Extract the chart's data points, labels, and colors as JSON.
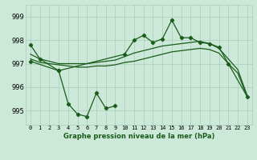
{
  "title": "Graphe pression niveau de la mer (hPa)",
  "background_color": "#cce8d8",
  "grid_color": "#aaccbb",
  "line_color": "#1a5c1a",
  "ylim": [
    994.4,
    999.5
  ],
  "yticks": [
    995,
    996,
    997,
    998,
    999
  ],
  "x_labels": [
    "0",
    "1",
    "2",
    "3",
    "4",
    "5",
    "6",
    "7",
    "8",
    "9",
    "10",
    "11",
    "12",
    "13",
    "14",
    "15",
    "16",
    "17",
    "18",
    "19",
    "20",
    "21",
    "22",
    "23"
  ],
  "s1_x": [
    0,
    1,
    3,
    10,
    11,
    12,
    13,
    14,
    15,
    16,
    17,
    18,
    19,
    20,
    21,
    23
  ],
  "s1_y": [
    997.8,
    997.2,
    996.7,
    997.4,
    998.0,
    998.2,
    997.9,
    998.05,
    998.85,
    998.1,
    998.1,
    997.9,
    997.85,
    997.7,
    997.0,
    995.6
  ],
  "s2_x": [
    0,
    1,
    2,
    3,
    4,
    5,
    6,
    7,
    8,
    9,
    10,
    11,
    12,
    13,
    14,
    15,
    16,
    17,
    18,
    19,
    20,
    21,
    22,
    23
  ],
  "s2_y": [
    997.4,
    997.2,
    997.1,
    997.0,
    997.0,
    997.0,
    997.0,
    997.05,
    997.1,
    997.15,
    997.3,
    997.45,
    997.55,
    997.65,
    997.75,
    997.8,
    997.85,
    997.9,
    997.95,
    997.85,
    997.65,
    997.2,
    996.75,
    995.65
  ],
  "s3_x": [
    0,
    1,
    2,
    3,
    4,
    5,
    6,
    7,
    8,
    9,
    10,
    11,
    12,
    13,
    14,
    15,
    16,
    17,
    18,
    19,
    20,
    21,
    22,
    23
  ],
  "s3_y": [
    997.2,
    997.05,
    997.0,
    996.95,
    996.9,
    996.85,
    996.85,
    996.9,
    996.9,
    996.95,
    997.05,
    997.1,
    997.2,
    997.3,
    997.4,
    997.5,
    997.55,
    997.6,
    997.65,
    997.6,
    997.45,
    997.0,
    996.6,
    995.6
  ],
  "s4_x": [
    0,
    3,
    4,
    5,
    6,
    7,
    8,
    9
  ],
  "s4_y": [
    997.1,
    996.7,
    995.3,
    994.85,
    994.75,
    995.75,
    995.1,
    995.2
  ]
}
